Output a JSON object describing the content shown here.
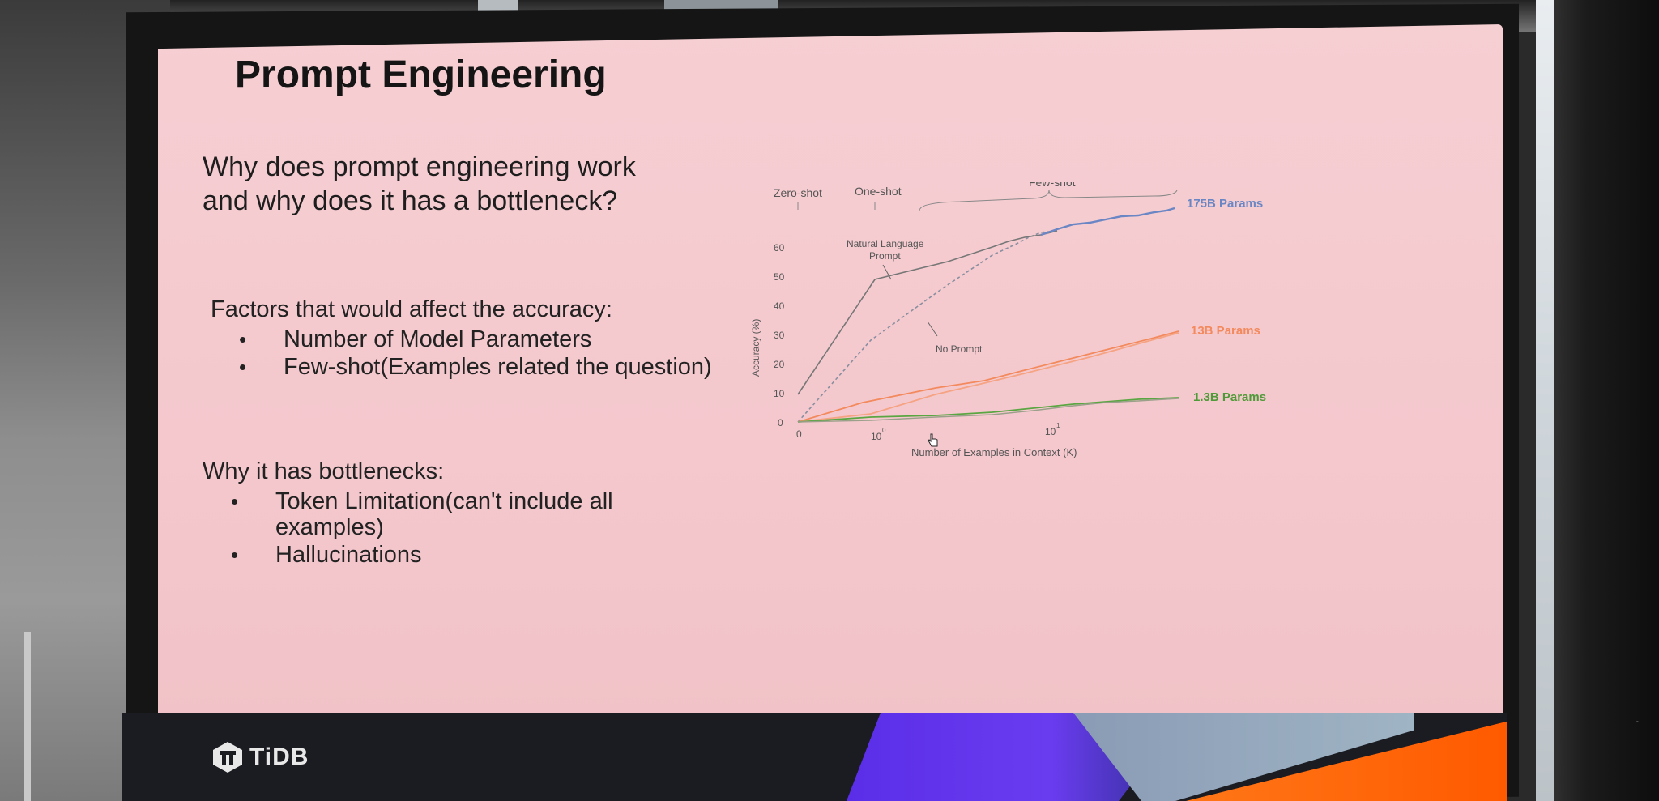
{
  "slide": {
    "title": "Prompt Engineering",
    "question": "Why does prompt engineering work and why does it has a bottleneck?",
    "factors_label": "Factors that would affect the accuracy:",
    "factors": [
      "Number of Model Parameters",
      "Few-shot(Examples related the question)"
    ],
    "bottleneck_label": "Why it has bottlenecks:",
    "bottlenecks": [
      "Token Limitation(can't include all examples)",
      "Hallucinations"
    ],
    "bullet": "•"
  },
  "chart": {
    "top_labels": [
      "Zero-shot",
      "One-shot",
      "Few-shot"
    ],
    "annotation_prompt": "Natural Language Prompt",
    "annotation_prompt_line1": "Natural Language",
    "annotation_prompt_line2": "Prompt",
    "annotation_noprompt": "No Prompt",
    "ylabel": "Accuracy (%)",
    "xlabel": "Number of Examples in Context (K)",
    "y_ticks": [
      "0",
      "10",
      "20",
      "30",
      "40",
      "50",
      "60"
    ],
    "x_ticks": [
      "0",
      "10",
      "10"
    ],
    "x_tick_exponents": [
      "0",
      "1"
    ],
    "series_labels": [
      "175B Params",
      "13B Params",
      "1.3B Params"
    ],
    "colors": {
      "blue": "#6b86c4",
      "gray": "#777777",
      "orange": "#f38a5e",
      "green": "#5aa642"
    }
  },
  "footer": {
    "logo_text": "TiDB"
  }
}
